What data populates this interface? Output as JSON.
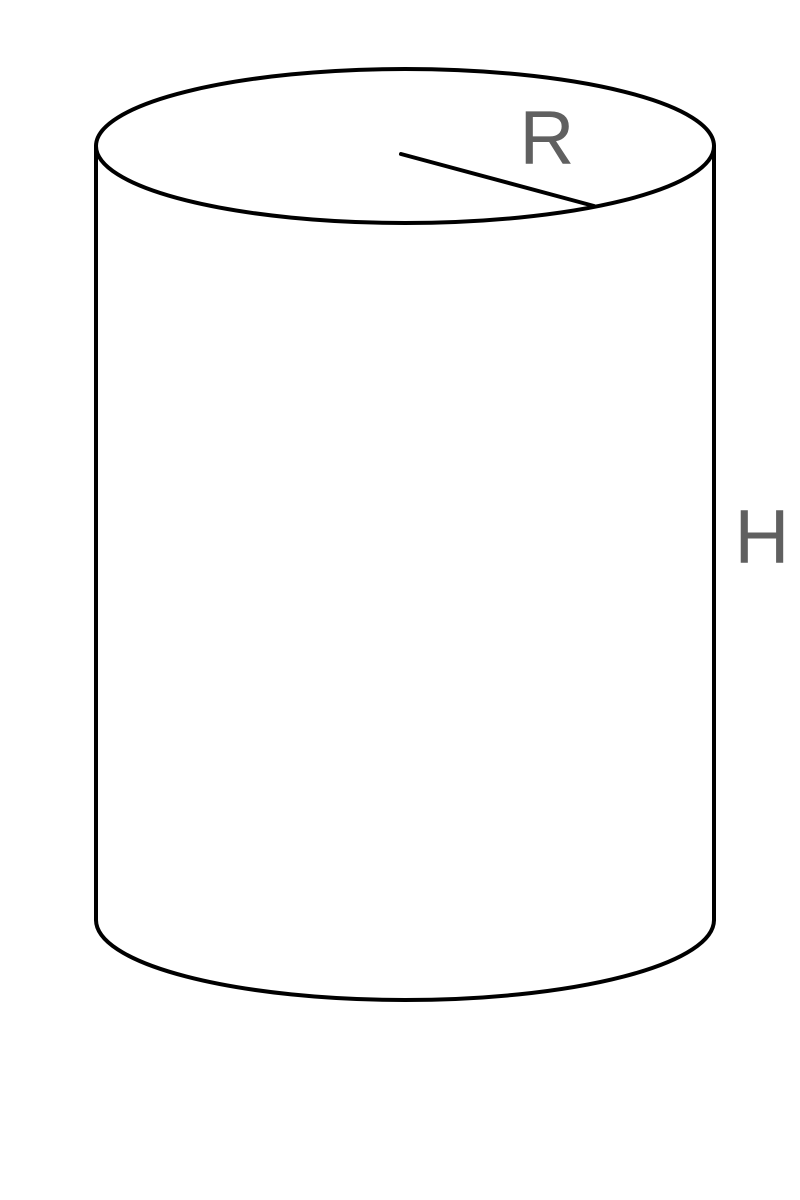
{
  "diagram": {
    "radius_label": "R",
    "height_label": "H",
    "colors": {
      "stroke": "#000000",
      "label": "#606060",
      "background": "#ffffff"
    }
  }
}
